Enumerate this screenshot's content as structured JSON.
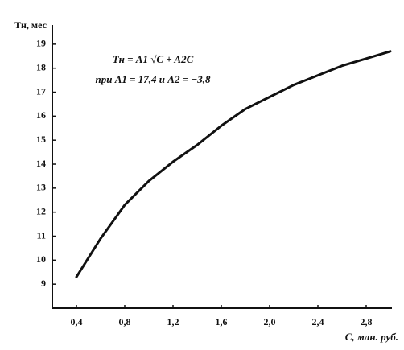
{
  "chart_data": {
    "type": "line",
    "y_label": "Tн, мес",
    "x_label": "C, млн. руб.",
    "annotations": [
      "Tн = A1 √C + A2C",
      "при A1 = 17,4 и A2 = −3,8"
    ],
    "x": [
      0.4,
      0.6,
      0.8,
      1.0,
      1.2,
      1.4,
      1.6,
      1.8,
      2.0,
      2.2,
      2.4,
      2.6,
      2.8,
      3.0
    ],
    "series": [
      {
        "color": "#111111",
        "values": [
          9.3,
          10.9,
          12.3,
          13.3,
          14.1,
          14.8,
          15.6,
          16.3,
          16.8,
          17.3,
          17.7,
          18.1,
          18.4,
          18.7
        ]
      }
    ],
    "xlim": [
      0.2,
      3.0
    ],
    "ylim": [
      8,
      19.8
    ],
    "xticks": [
      {
        "value": 0.4,
        "label": "0,4"
      },
      {
        "value": 0.8,
        "label": "0,8"
      },
      {
        "value": 1.2,
        "label": "1,2"
      },
      {
        "value": 1.6,
        "label": "1,6"
      },
      {
        "value": 2.0,
        "label": "2,0"
      },
      {
        "value": 2.4,
        "label": "2,4"
      },
      {
        "value": 2.8,
        "label": "2,8"
      }
    ],
    "yticks": [
      9,
      10,
      11,
      12,
      13,
      14,
      15,
      16,
      17,
      18,
      19
    ],
    "grid": false
  }
}
